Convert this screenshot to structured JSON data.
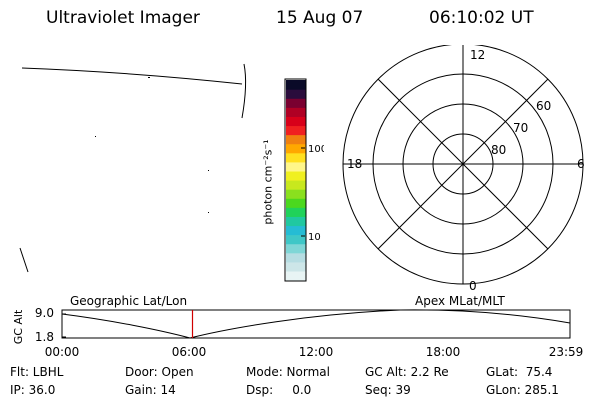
{
  "header": {
    "title": "Ultraviolet Imager",
    "date": "15 Aug 07",
    "time": "06:10:02 UT"
  },
  "colorbar": {
    "unit_label": "photon cm⁻²s⁻¹",
    "tick_100": "100",
    "tick_10": "10",
    "colors": [
      "#e8f4f4",
      "#cde6e8",
      "#b6dde2",
      "#7fd6d6",
      "#3fc7c7",
      "#25bcd4",
      "#20c8a0",
      "#20d25a",
      "#4bd81e",
      "#8ae01e",
      "#c8e81e",
      "#f0f020",
      "#fff68a",
      "#ffe020",
      "#ffa800",
      "#f08010",
      "#f02020",
      "#d8001a",
      "#b00024",
      "#7a0030",
      "#2a0c3c",
      "#0a0a28"
    ]
  },
  "polar": {
    "label_12": "12",
    "label_6": "6",
    "label_18": "18",
    "label_0": "0",
    "label_60": "60",
    "label_70": "70",
    "label_80": "80"
  },
  "timeline": {
    "left_header": "Geographic Lat/Lon",
    "right_header": "Apex MLat/MLT",
    "axis_label": "GC Alt",
    "y_high": "9.0",
    "y_low": "1.8",
    "x_ticks": [
      "00:00",
      "06:00",
      "12:00",
      "18:00",
      "23:59"
    ],
    "current_marker_time": "06:10",
    "current_marker_color": "#d00000"
  },
  "footer": {
    "filter": "Flt: LBHL",
    "door": "Door: Open",
    "mode": "Mode: Normal",
    "gc_alt": "GC Alt: 2.2 Re",
    "glat": "GLat:  75.4",
    "ip": "IP: 36.0",
    "gain": "Gain: 14",
    "dsp": "Dsp:     0.0",
    "seq": "Seq: 39",
    "glon": "GLon: 285.1"
  }
}
